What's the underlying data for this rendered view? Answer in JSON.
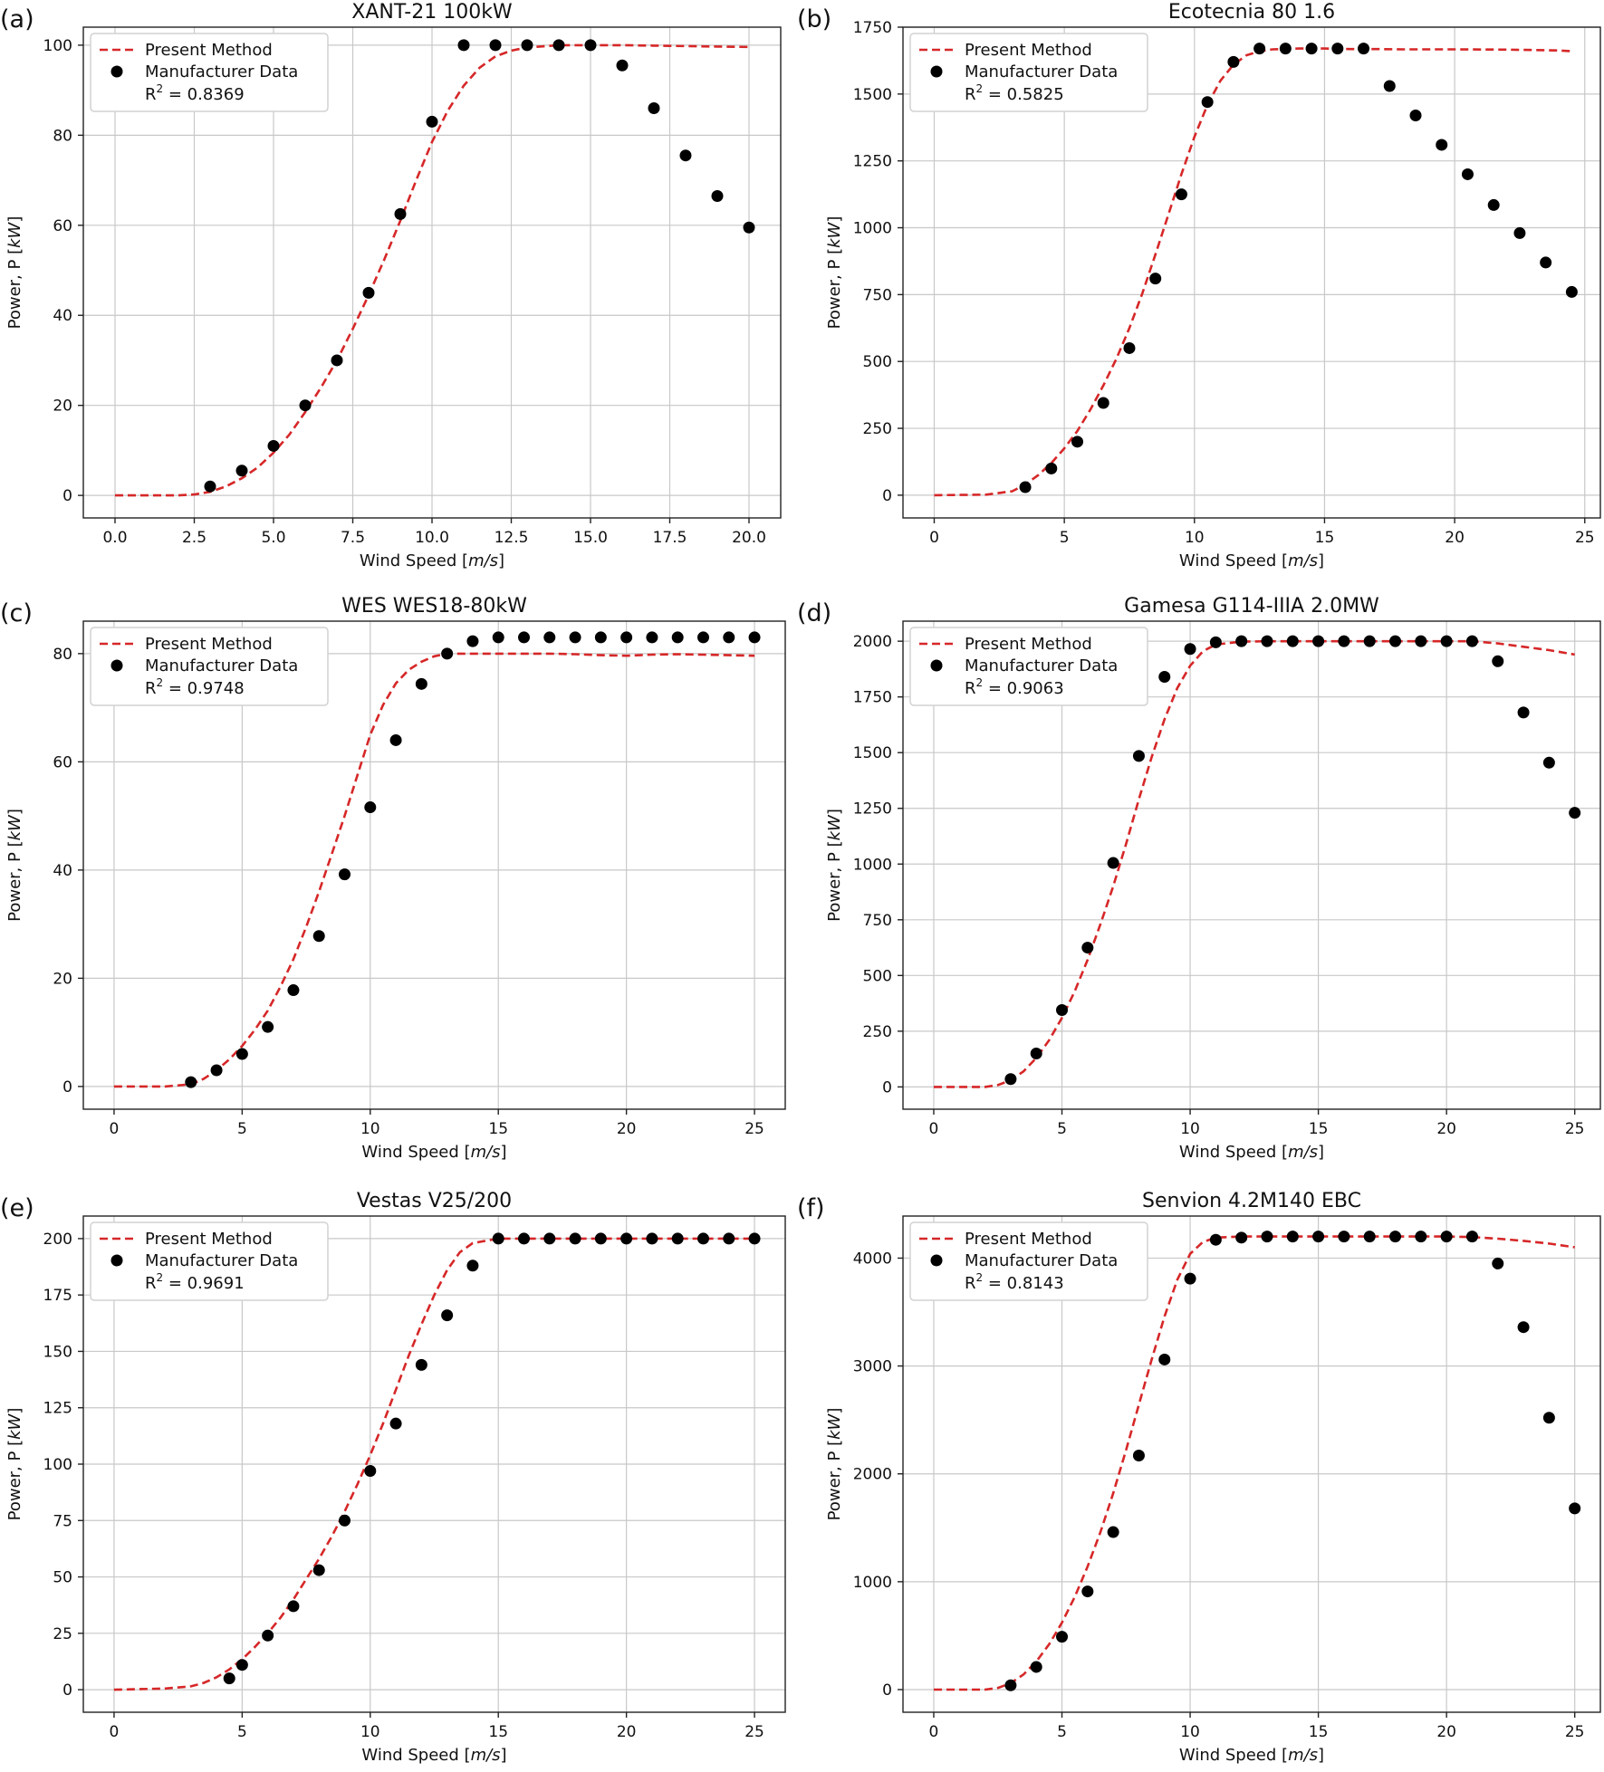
{
  "figure": {
    "panels": [
      {
        "label": "(a)",
        "title": "XANT-21 100kW",
        "ylabel": "Power, P [kW]",
        "xlabel": "Wind Speed [m/s]",
        "r2": "= 0.8369"
      },
      {
        "label": "(b)",
        "title": "Ecotecnia 80 1.6",
        "ylabel": "Power, P [kW]",
        "xlabel": "Wind Speed [m/s]",
        "r2": "= 0.5825"
      },
      {
        "label": "(c)",
        "title": "WES WES18-80kW",
        "ylabel": "Power, P [kW]",
        "xlabel": "Wind Speed [m/s]",
        "r2": "= 0.9748"
      },
      {
        "label": "(d)",
        "title": "Gamesa G114-IIIA 2.0MW",
        "ylabel": "Power, P [kW]",
        "xlabel": "Wind Speed [m/s]",
        "r2": "= 0.9063"
      },
      {
        "label": "(e)",
        "title": "Vestas V25/200",
        "ylabel": "Power, P [kW]",
        "xlabel": "Wind Speed [m/s]",
        "r2": "= 0.9691"
      },
      {
        "label": "(f)",
        "title": "Senvion 4.2M140 EBC",
        "ylabel": "Power, P [kW]",
        "xlabel": "Wind Speed [m/s]",
        "r2": "= 0.8143"
      }
    ],
    "legend": {
      "method_label": "Present Method",
      "data_label": "Manufacturer Data",
      "r2_prefix": "R",
      "r2_sup": "2"
    },
    "colors": {
      "method": "#d62728",
      "data": "#000000"
    }
  },
  "chart_data": [
    {
      "type": "line+scatter",
      "title": "XANT-21 100kW",
      "xlabel": "Wind Speed [m/s]",
      "ylabel": "Power, P [kW]",
      "xlim": [
        -1.0,
        21.0
      ],
      "ylim": [
        -5,
        104
      ],
      "xticks": [
        0,
        2.5,
        5,
        7.5,
        10,
        12.5,
        15,
        17.5,
        20
      ],
      "xtick_labels": [
        "0.0",
        "2.5",
        "5.0",
        "7.5",
        "10.0",
        "12.5",
        "15.0",
        "17.5",
        "20.0"
      ],
      "yticks": [
        0,
        20,
        40,
        60,
        80,
        100
      ],
      "series": [
        {
          "name": "Present Method",
          "kind": "line",
          "x": [
            0,
            2,
            2.5,
            3,
            3.5,
            4,
            4.5,
            5,
            5.5,
            6,
            6.5,
            7,
            7.5,
            8,
            8.5,
            9,
            9.5,
            10,
            10.5,
            11,
            11.5,
            12,
            12.5,
            13,
            14,
            15,
            16,
            17,
            18,
            19,
            20
          ],
          "y": [
            0,
            0,
            0.2,
            0.8,
            2,
            3.8,
            6.2,
            9.5,
            13.5,
            18.5,
            24,
            30,
            37,
            44.5,
            52.5,
            61,
            70,
            78.5,
            85.5,
            91,
            95,
            97.5,
            98.8,
            99.5,
            100,
            100,
            100,
            99.9,
            99.8,
            99.7,
            99.6
          ]
        },
        {
          "name": "Manufacturer Data",
          "kind": "scatter",
          "x": [
            3,
            4,
            5,
            6,
            7,
            8,
            9,
            10,
            11,
            12,
            13,
            14,
            15,
            16,
            17,
            18,
            19,
            20
          ],
          "y": [
            2,
            5.5,
            11,
            20,
            30,
            45,
            62.5,
            83,
            100,
            100,
            100,
            100,
            100,
            95.5,
            86,
            75.5,
            66.5,
            59.5
          ]
        }
      ],
      "r2": 0.8369
    },
    {
      "type": "line+scatter",
      "title": "Ecotecnia 80 1.6",
      "xlabel": "Wind Speed [m/s]",
      "ylabel": "Power, P [kW]",
      "xlim": [
        -1.2,
        25.6
      ],
      "ylim": [
        -85,
        1750
      ],
      "xticks": [
        0,
        5,
        10,
        15,
        20,
        25
      ],
      "xtick_labels": [
        "0",
        "5",
        "10",
        "15",
        "20",
        "25"
      ],
      "yticks": [
        0,
        250,
        500,
        750,
        1000,
        1250,
        1500,
        1750
      ],
      "series": [
        {
          "name": "Present Method",
          "kind": "line",
          "x": [
            0,
            2,
            3,
            3.5,
            4,
            4.5,
            5,
            5.5,
            6,
            6.5,
            7,
            7.5,
            8,
            8.5,
            9,
            9.5,
            10,
            10.5,
            11,
            11.5,
            12,
            12.5,
            13,
            14,
            15,
            16,
            17,
            18,
            20,
            22,
            24,
            24.5
          ],
          "y": [
            0,
            2,
            15,
            40,
            75,
            120,
            175,
            240,
            320,
            410,
            510,
            625,
            755,
            900,
            1050,
            1200,
            1340,
            1460,
            1550,
            1610,
            1645,
            1660,
            1667,
            1670,
            1670,
            1668,
            1668,
            1667,
            1667,
            1666,
            1663,
            1660
          ]
        },
        {
          "name": "Manufacturer Data",
          "kind": "scatter",
          "x": [
            3.5,
            4.5,
            5.5,
            6.5,
            7.5,
            8.5,
            9.5,
            10.5,
            11.5,
            12.5,
            13.5,
            14.5,
            15.5,
            16.5,
            17.5,
            18.5,
            19.5,
            20.5,
            21.5,
            22.5,
            23.5,
            24.5
          ],
          "y": [
            30,
            100,
            200,
            345,
            550,
            810,
            1125,
            1470,
            1620,
            1670,
            1670,
            1670,
            1670,
            1670,
            1530,
            1420,
            1310,
            1200,
            1085,
            980,
            870,
            760
          ]
        }
      ],
      "r2": 0.5825
    },
    {
      "type": "line+scatter",
      "title": "WES WES18-80kW",
      "xlabel": "Wind Speed [m/s]",
      "ylabel": "Power, P [kW]",
      "xlim": [
        -1.2,
        26.2
      ],
      "ylim": [
        -4.2,
        86
      ],
      "xticks": [
        0,
        5,
        10,
        15,
        20,
        25
      ],
      "xtick_labels": [
        "0",
        "5",
        "10",
        "15",
        "20",
        "25"
      ],
      "yticks": [
        0,
        20,
        40,
        60,
        80
      ],
      "series": [
        {
          "name": "Present Method",
          "kind": "line",
          "x": [
            0,
            2,
            3,
            3.5,
            4,
            4.5,
            5,
            5.5,
            6,
            6.5,
            7,
            7.5,
            8,
            8.5,
            9,
            9.5,
            10,
            10.5,
            11,
            11.5,
            12,
            12.5,
            13,
            14,
            15,
            16,
            17,
            18,
            19,
            20,
            21,
            22,
            23,
            24,
            25
          ],
          "y": [
            0,
            0,
            0.4,
            1.4,
            3,
            5,
            7.5,
            10.5,
            14,
            18.5,
            23.5,
            29.5,
            36,
            43,
            50,
            57.5,
            65,
            70.5,
            74.5,
            77,
            78.5,
            79.5,
            80,
            80,
            80,
            80,
            80,
            79.9,
            79.7,
            79.6,
            79.8,
            79.9,
            79.8,
            79.7,
            79.6
          ]
        },
        {
          "name": "Manufacturer Data",
          "kind": "scatter",
          "x": [
            3,
            4,
            5,
            6,
            7,
            8,
            9,
            10,
            11,
            12,
            13,
            14,
            15,
            16,
            17,
            18,
            19,
            20,
            21,
            22,
            23,
            24,
            25
          ],
          "y": [
            0.8,
            3,
            6,
            11,
            17.8,
            27.8,
            39.2,
            51.6,
            64,
            74.4,
            80,
            82.3,
            83,
            83,
            83,
            83,
            83,
            83,
            83,
            83,
            83,
            83,
            83
          ]
        }
      ],
      "r2": 0.9748
    },
    {
      "type": "line+scatter",
      "title": "Gamesa G114-IIIA 2.0MW",
      "xlabel": "Wind Speed [m/s]",
      "ylabel": "Power, P [kW]",
      "xlim": [
        -1.2,
        26
      ],
      "ylim": [
        -100,
        2090
      ],
      "xticks": [
        0,
        5,
        10,
        15,
        20,
        25
      ],
      "xtick_labels": [
        "0",
        "5",
        "10",
        "15",
        "20",
        "25"
      ],
      "yticks": [
        0,
        250,
        500,
        750,
        1000,
        1250,
        1500,
        1750,
        2000
      ],
      "series": [
        {
          "name": "Present Method",
          "kind": "line",
          "x": [
            0,
            2,
            2.5,
            3,
            3.5,
            4,
            4.5,
            5,
            5.5,
            6,
            6.5,
            7,
            7.5,
            8,
            8.5,
            9,
            9.5,
            10,
            10.5,
            11,
            12,
            13,
            15,
            17,
            19,
            20,
            21,
            22,
            23,
            24,
            25
          ],
          "y": [
            0,
            0,
            8,
            30,
            70,
            130,
            210,
            310,
            430,
            570,
            730,
            900,
            1090,
            1290,
            1480,
            1650,
            1790,
            1890,
            1955,
            1985,
            1998,
            2000,
            2000,
            2000,
            2000,
            2000,
            2000,
            1990,
            1975,
            1960,
            1940
          ]
        },
        {
          "name": "Manufacturer Data",
          "kind": "scatter",
          "x": [
            3,
            4,
            5,
            6,
            7,
            8,
            9,
            10,
            11,
            12,
            13,
            14,
            15,
            16,
            17,
            18,
            19,
            20,
            21,
            22,
            23,
            24,
            25
          ],
          "y": [
            35,
            150,
            345,
            625,
            1005,
            1485,
            1840,
            1965,
            1995,
            2000,
            2000,
            2000,
            2000,
            2000,
            2000,
            2000,
            2000,
            2000,
            2000,
            1910,
            1680,
            1455,
            1230
          ]
        }
      ],
      "r2": 0.9063
    },
    {
      "type": "line+scatter",
      "title": "Vestas V25/200",
      "xlabel": "Wind Speed [m/s]",
      "ylabel": "Power, P [kW]",
      "xlim": [
        -1.2,
        26.2
      ],
      "ylim": [
        -10,
        210
      ],
      "xticks": [
        0,
        5,
        10,
        15,
        20,
        25
      ],
      "xtick_labels": [
        "0",
        "5",
        "10",
        "15",
        "20",
        "25"
      ],
      "yticks": [
        0,
        25,
        50,
        75,
        100,
        125,
        150,
        175,
        200
      ],
      "series": [
        {
          "name": "Present Method",
          "kind": "line",
          "x": [
            0,
            2,
            3,
            3.5,
            4,
            4.5,
            5,
            5.5,
            6,
            6.5,
            7,
            7.5,
            8,
            8.5,
            9,
            9.5,
            10,
            10.5,
            11,
            11.5,
            12,
            12.5,
            13,
            13.5,
            14,
            15,
            16,
            18,
            20,
            22,
            25
          ],
          "y": [
            0,
            0.5,
            1.5,
            3,
            5.5,
            9,
            13.5,
            19,
            25,
            32,
            40,
            49,
            58,
            68,
            79,
            91,
            104,
            118,
            133,
            148,
            162,
            175,
            186,
            194,
            198,
            200,
            200,
            200,
            200,
            200,
            200
          ]
        },
        {
          "name": "Manufacturer Data",
          "kind": "scatter",
          "x": [
            4.5,
            5,
            6,
            7,
            8,
            9,
            10,
            11,
            12,
            13,
            14,
            15,
            16,
            17,
            18,
            19,
            20,
            21,
            22,
            23,
            24,
            25
          ],
          "y": [
            5,
            11,
            24,
            37,
            53,
            75,
            97,
            118,
            144,
            166,
            188,
            200,
            200,
            200,
            200,
            200,
            200,
            200,
            200,
            200,
            200,
            200
          ]
        }
      ],
      "r2": 0.9691
    },
    {
      "type": "line+scatter",
      "title": "Senvion 4.2M140 EBC",
      "xlabel": "Wind Speed [m/s]",
      "ylabel": "Power, P [kW]",
      "xlim": [
        -1.2,
        26
      ],
      "ylim": [
        -210,
        4390
      ],
      "xticks": [
        0,
        5,
        10,
        15,
        20,
        25
      ],
      "xtick_labels": [
        "0",
        "5",
        "10",
        "15",
        "20",
        "25"
      ],
      "yticks": [
        0,
        1000,
        2000,
        3000,
        4000
      ],
      "series": [
        {
          "name": "Present Method",
          "kind": "line",
          "x": [
            0,
            2,
            2.5,
            3,
            3.5,
            4,
            4.5,
            5,
            5.5,
            6,
            6.5,
            7,
            7.5,
            8,
            8.5,
            9,
            9.5,
            10,
            10.5,
            11,
            12,
            13,
            15,
            17,
            19,
            20,
            21,
            22,
            23,
            24,
            25
          ],
          "y": [
            0,
            0,
            15,
            60,
            140,
            260,
            420,
            620,
            860,
            1140,
            1460,
            1820,
            2220,
            2640,
            3060,
            3460,
            3800,
            4040,
            4150,
            4190,
            4200,
            4200,
            4200,
            4200,
            4200,
            4200,
            4195,
            4180,
            4160,
            4135,
            4100
          ]
        },
        {
          "name": "Manufacturer Data",
          "kind": "scatter",
          "x": [
            3,
            4,
            5,
            6,
            7,
            8,
            9,
            10,
            11,
            12,
            13,
            14,
            15,
            16,
            17,
            18,
            19,
            20,
            21,
            22,
            23,
            24,
            25
          ],
          "y": [
            40,
            210,
            490,
            910,
            1460,
            2170,
            3060,
            3810,
            4170,
            4190,
            4200,
            4200,
            4200,
            4200,
            4200,
            4200,
            4200,
            4200,
            4200,
            3950,
            3360,
            2520,
            1680
          ]
        }
      ],
      "r2": 0.8143
    }
  ]
}
